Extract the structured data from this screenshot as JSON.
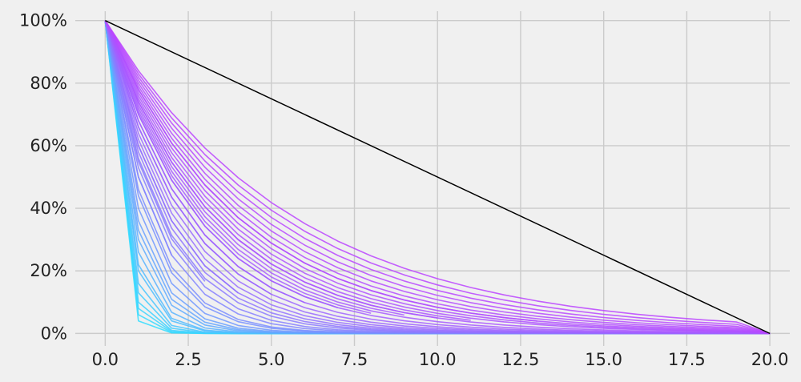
{
  "chart_data": {
    "type": "line",
    "title": "",
    "xlabel": "",
    "ylabel": "",
    "xlim": [
      -0.9,
      20.6
    ],
    "ylim": [
      -0.04,
      1.03
    ],
    "grid": true,
    "legend": "none",
    "x_ticks": [
      0,
      2.5,
      5,
      7.5,
      10,
      12.5,
      15,
      17.5,
      20
    ],
    "x_tick_labels": [
      "0.0",
      "2.5",
      "5.0",
      "7.5",
      "10.0",
      "12.5",
      "15.0",
      "17.5",
      "20.0"
    ],
    "y_ticks": [
      0,
      0.2,
      0.4,
      0.6,
      0.8,
      1.0
    ],
    "y_tick_labels": [
      "0%",
      "20%",
      "40%",
      "60%",
      "80%",
      "100%"
    ],
    "colors": {
      "background": "#f0f0f0",
      "grid": "#cbcbcb",
      "reference_line": "#000000",
      "fast_decay": "#33ddff",
      "slow_decay": "#bb44ff"
    },
    "reference_line": {
      "x": [
        0,
        20
      ],
      "y": [
        1.0,
        0.0
      ]
    },
    "curve_families": [
      {
        "decay_ratios": [
          0.04,
          0.06,
          0.08,
          0.1,
          0.13,
          0.16,
          0.2
        ],
        "length": 20
      },
      {
        "decay_ratios": [
          0.22,
          0.26,
          0.3,
          0.33,
          0.36,
          0.4,
          0.44
        ],
        "length": 20
      },
      {
        "decay_ratios": [
          0.46,
          0.5,
          0.53,
          0.56,
          0.58,
          0.6,
          0.62
        ],
        "length": 20
      },
      {
        "decay_ratios": [
          0.64,
          0.66,
          0.68,
          0.7,
          0.72,
          0.74,
          0.76
        ],
        "length": 20
      },
      {
        "decay_ratios": [
          0.77,
          0.78,
          0.79,
          0.8,
          0.81,
          0.82,
          0.83,
          0.84
        ],
        "length": 20
      }
    ],
    "truncated_curves": [
      {
        "decay_ratio": 0.5,
        "length": 2
      },
      {
        "decay_ratio": 0.55,
        "length": 3
      },
      {
        "decay_ratio": 0.6,
        "length": 4
      },
      {
        "decay_ratio": 0.66,
        "length": 5
      },
      {
        "decay_ratio": 0.68,
        "length": 6
      },
      {
        "decay_ratio": 0.7,
        "length": 7
      },
      {
        "decay_ratio": 0.71,
        "length": 8
      },
      {
        "decay_ratio": 0.73,
        "length": 9
      },
      {
        "decay_ratio": 0.74,
        "length": 10
      },
      {
        "decay_ratio": 0.75,
        "length": 11
      },
      {
        "decay_ratio": 0.78,
        "length": 13
      }
    ]
  }
}
